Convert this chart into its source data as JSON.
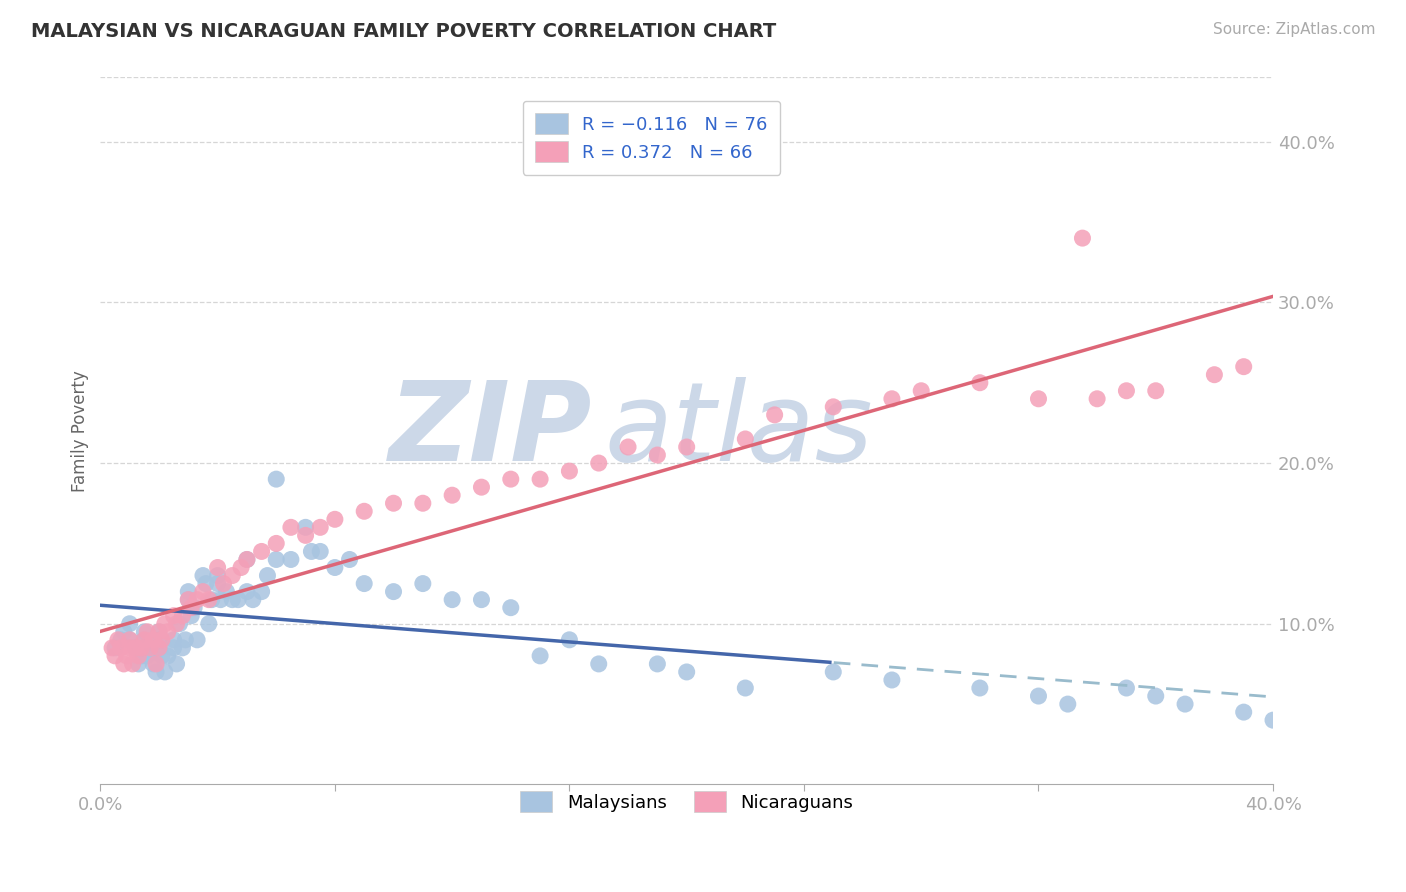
{
  "title": "MALAYSIAN VS NICARAGUAN FAMILY POVERTY CORRELATION CHART",
  "source": "Source: ZipAtlas.com",
  "ylabel": "Family Poverty",
  "yticks": [
    "10.0%",
    "20.0%",
    "30.0%",
    "40.0%"
  ],
  "ytick_vals": [
    0.1,
    0.2,
    0.3,
    0.4
  ],
  "xlim": [
    0.0,
    0.4
  ],
  "ylim": [
    0.0,
    0.44
  ],
  "malaysian_color": "#a8c4e0",
  "nicaraguan_color": "#f4a0b8",
  "regression_blue_color": "#4466aa",
  "regression_pink_color": "#dd6677",
  "regression_blue_dashed_color": "#99bbcc",
  "watermark_zip": "ZIP",
  "watermark_atlas": "atlas",
  "watermark_color": "#ccd8e8",
  "background_color": "#ffffff",
  "grid_color": "#cccccc",
  "mal_x": [
    0.005,
    0.007,
    0.008,
    0.01,
    0.01,
    0.012,
    0.013,
    0.014,
    0.015,
    0.015,
    0.016,
    0.017,
    0.018,
    0.019,
    0.02,
    0.02,
    0.02,
    0.021,
    0.022,
    0.023,
    0.025,
    0.025,
    0.026,
    0.027,
    0.028,
    0.029,
    0.03,
    0.03,
    0.031,
    0.032,
    0.033,
    0.035,
    0.036,
    0.037,
    0.038,
    0.04,
    0.04,
    0.041,
    0.043,
    0.045,
    0.047,
    0.05,
    0.05,
    0.052,
    0.055,
    0.057,
    0.06,
    0.06,
    0.065,
    0.07,
    0.072,
    0.075,
    0.08,
    0.085,
    0.09,
    0.1,
    0.11,
    0.12,
    0.13,
    0.14,
    0.15,
    0.16,
    0.17,
    0.19,
    0.2,
    0.22,
    0.25,
    0.27,
    0.3,
    0.32,
    0.33,
    0.35,
    0.36,
    0.37,
    0.39,
    0.4
  ],
  "mal_y": [
    0.085,
    0.09,
    0.095,
    0.09,
    0.1,
    0.085,
    0.075,
    0.08,
    0.09,
    0.095,
    0.08,
    0.085,
    0.075,
    0.07,
    0.085,
    0.09,
    0.095,
    0.08,
    0.07,
    0.08,
    0.09,
    0.085,
    0.075,
    0.1,
    0.085,
    0.09,
    0.12,
    0.115,
    0.105,
    0.11,
    0.09,
    0.13,
    0.125,
    0.1,
    0.115,
    0.13,
    0.125,
    0.115,
    0.12,
    0.115,
    0.115,
    0.14,
    0.12,
    0.115,
    0.12,
    0.13,
    0.19,
    0.14,
    0.14,
    0.16,
    0.145,
    0.145,
    0.135,
    0.14,
    0.125,
    0.12,
    0.125,
    0.115,
    0.115,
    0.11,
    0.08,
    0.09,
    0.075,
    0.075,
    0.07,
    0.06,
    0.07,
    0.065,
    0.06,
    0.055,
    0.05,
    0.06,
    0.055,
    0.05,
    0.045,
    0.04
  ],
  "nic_x": [
    0.004,
    0.005,
    0.006,
    0.007,
    0.008,
    0.009,
    0.01,
    0.01,
    0.011,
    0.012,
    0.013,
    0.014,
    0.015,
    0.016,
    0.017,
    0.018,
    0.019,
    0.02,
    0.02,
    0.021,
    0.022,
    0.023,
    0.025,
    0.026,
    0.028,
    0.03,
    0.031,
    0.033,
    0.035,
    0.037,
    0.04,
    0.042,
    0.045,
    0.048,
    0.05,
    0.055,
    0.06,
    0.065,
    0.07,
    0.075,
    0.08,
    0.09,
    0.1,
    0.11,
    0.12,
    0.13,
    0.14,
    0.15,
    0.16,
    0.17,
    0.18,
    0.19,
    0.2,
    0.22,
    0.23,
    0.25,
    0.27,
    0.28,
    0.3,
    0.32,
    0.34,
    0.35,
    0.36,
    0.38,
    0.39,
    0.335
  ],
  "nic_y": [
    0.085,
    0.08,
    0.09,
    0.085,
    0.075,
    0.08,
    0.09,
    0.085,
    0.075,
    0.085,
    0.08,
    0.085,
    0.09,
    0.095,
    0.085,
    0.09,
    0.075,
    0.085,
    0.095,
    0.09,
    0.1,
    0.095,
    0.105,
    0.1,
    0.105,
    0.115,
    0.11,
    0.115,
    0.12,
    0.115,
    0.135,
    0.125,
    0.13,
    0.135,
    0.14,
    0.145,
    0.15,
    0.16,
    0.155,
    0.16,
    0.165,
    0.17,
    0.175,
    0.175,
    0.18,
    0.185,
    0.19,
    0.19,
    0.195,
    0.2,
    0.21,
    0.205,
    0.21,
    0.215,
    0.23,
    0.235,
    0.24,
    0.245,
    0.25,
    0.24,
    0.24,
    0.245,
    0.245,
    0.255,
    0.26,
    0.34
  ]
}
